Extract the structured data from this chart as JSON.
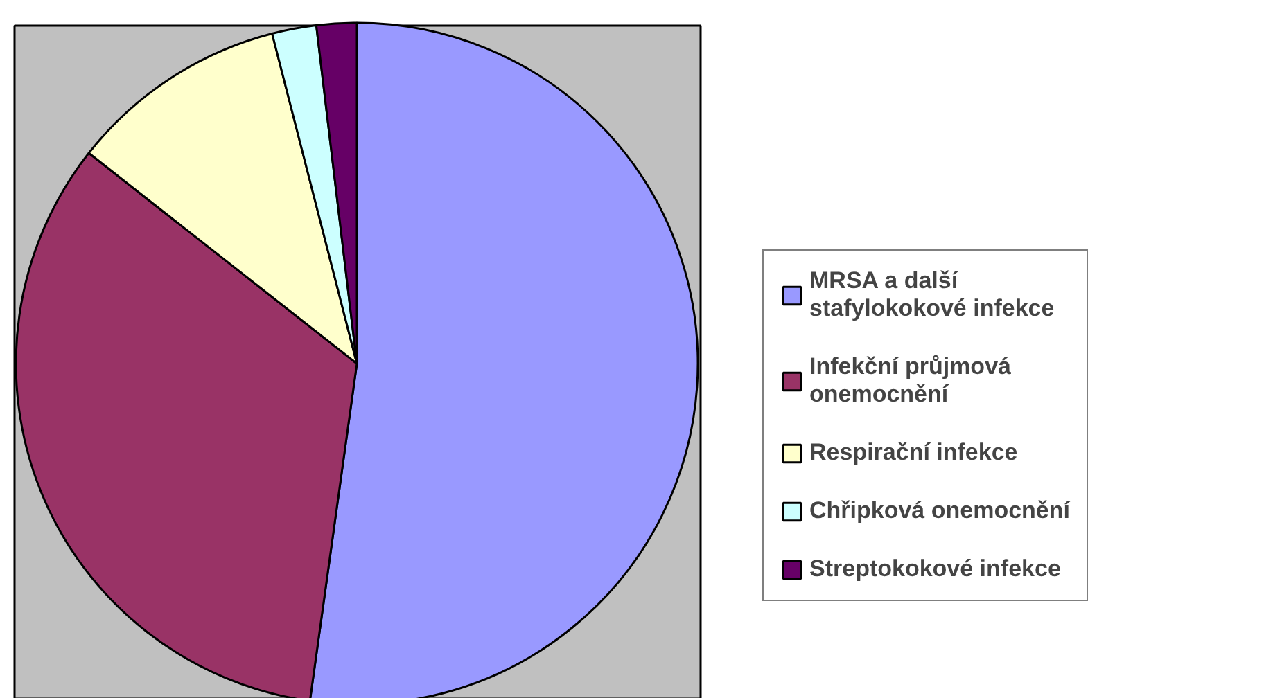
{
  "chart_data": {
    "type": "pie",
    "categories": [
      "MRSA a další stafylokokové infekce",
      "Infekční průjmová onemocnění",
      "Respirační infekce",
      "Chřipková onemocnění",
      "Streptokokové infekce"
    ],
    "values": [
      52.2,
      33.4,
      10.4,
      2.1,
      1.9
    ],
    "colors": [
      "#9999ff",
      "#993366",
      "#ffffcc",
      "#ccffff",
      "#660066"
    ],
    "legend": "right"
  }
}
